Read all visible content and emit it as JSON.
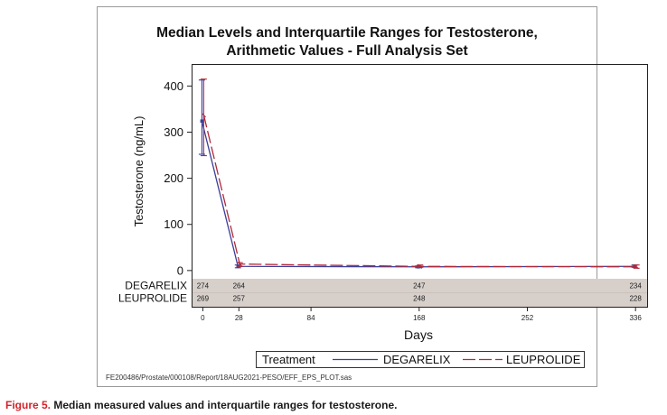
{
  "chart_data": {
    "type": "line",
    "title": [
      "Median Levels and Interquartile Ranges for Testosterone,",
      "Arithmetic Values - Full Analysis Set"
    ],
    "xlabel": "Days",
    "ylabel": "Testosterone (ng/mL)",
    "xlim": [
      -8,
      345
    ],
    "ylim": [
      -12,
      430
    ],
    "x_ticks": [
      0,
      28,
      84,
      168,
      252,
      336
    ],
    "y_ticks": [
      0,
      100,
      200,
      300,
      400
    ],
    "series": [
      {
        "name": "DEGARELIX",
        "color": "#3b3f99",
        "dash": "solid",
        "points": [
          {
            "x": 0,
            "median": 324,
            "q1": 252,
            "q3": 413
          },
          {
            "x": 28,
            "median": 9,
            "q1": 6,
            "q3": 12
          },
          {
            "x": 168,
            "median": 8,
            "q1": 6,
            "q3": 10
          },
          {
            "x": 336,
            "median": 9,
            "q1": 7,
            "q3": 12
          }
        ]
      },
      {
        "name": "LEUPROLIDE",
        "color": "#b02a3a",
        "dash": "long-dash",
        "points": [
          {
            "x": 0,
            "median": 337,
            "q1": 249,
            "q3": 415
          },
          {
            "x": 28,
            "median": 14,
            "q1": 9,
            "q3": 17
          },
          {
            "x": 168,
            "median": 9,
            "q1": 7,
            "q3": 12
          },
          {
            "x": 336,
            "median": 8,
            "q1": 5,
            "q3": 12
          }
        ]
      }
    ],
    "at_risk": [
      {
        "label": "DEGARELIX",
        "values": [
          {
            "x": 0,
            "n": "274"
          },
          {
            "x": 28,
            "n": "264"
          },
          {
            "x": 168,
            "n": "247"
          },
          {
            "x": 336,
            "n": "234"
          }
        ]
      },
      {
        "label": "LEUPROLIDE",
        "values": [
          {
            "x": 0,
            "n": "269"
          },
          {
            "x": 28,
            "n": "257"
          },
          {
            "x": 168,
            "n": "248"
          },
          {
            "x": 336,
            "n": "228"
          }
        ]
      }
    ],
    "legend": {
      "title": "Treatment",
      "position": "bottom",
      "entries": [
        {
          "label": "DEGARELIX",
          "color": "#3b3f99",
          "dash": "solid"
        },
        {
          "label": "LEUPROLIDE",
          "color": "#b02a3a",
          "dash": "long-dash"
        }
      ]
    },
    "footnote": "FE200486/Prostate/000108/Report/18AUG2021-PESO/EFF_EPS_PLOT.sas"
  },
  "caption": {
    "label": "Figure 5.",
    "text": " Median measured values and interquartile ranges for testosterone."
  }
}
